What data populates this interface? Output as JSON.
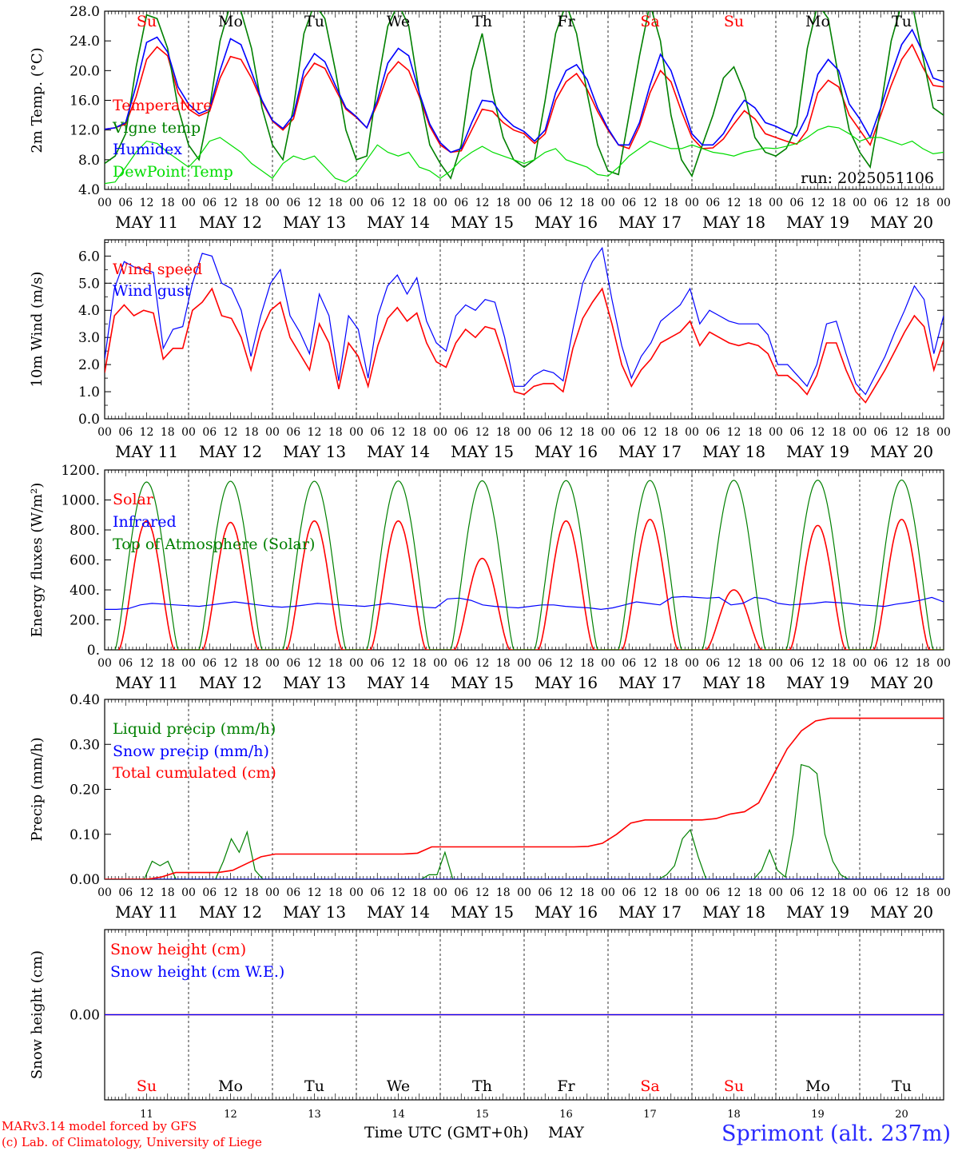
{
  "footer": {
    "model": "MARv3.14 model forced by GFS",
    "copyright": "(c) Lab. of Climatology, University of Liege",
    "time_axis_title": "Time UTC (GMT+0h)",
    "month": "MAY",
    "station": "Sprimont (alt. 237m)"
  },
  "days": {
    "dates": [
      "MAY 11",
      "MAY 12",
      "MAY 13",
      "MAY 14",
      "MAY 15",
      "MAY 16",
      "MAY 17",
      "MAY 18",
      "MAY 19",
      "MAY 20"
    ],
    "weekdays": [
      "Su",
      "Mo",
      "Tu",
      "We",
      "Th",
      "Fr",
      "Sa",
      "Su",
      "Mo",
      "Tu"
    ],
    "weekend": [
      true,
      false,
      false,
      false,
      false,
      false,
      true,
      true,
      false,
      false
    ],
    "numbers": [
      "11",
      "12",
      "13",
      "14",
      "15",
      "16",
      "17",
      "18",
      "19",
      "20"
    ],
    "hour_labels": [
      "00",
      "06",
      "12",
      "18"
    ],
    "final_hour_label": "00"
  },
  "colors": {
    "red": "#ff0000",
    "green": "#008000",
    "blue": "#0000ff",
    "lime": "#00dd00",
    "weekend": "#ff0000"
  },
  "chart_data": [
    {
      "type": "line",
      "ylabel": "2m Temp. (°C)",
      "ylim": [
        4,
        28
      ],
      "yticks": [
        "4.0",
        "8.0",
        "12.0",
        "16.0",
        "20.0",
        "24.0",
        "28.0"
      ],
      "x_unit": "hours since 2025-05-11 00 UTC (3-hourly)",
      "annotation": "run: 2025051106",
      "series": [
        {
          "name": "Temperature",
          "color": "#ff0000",
          "values": [
            12.1,
            12.3,
            12.8,
            16.5,
            21.5,
            23.2,
            22.0,
            17.0,
            14.8,
            13.9,
            14.5,
            19.0,
            21.9,
            21.5,
            19.0,
            15.8,
            13.2,
            12.0,
            13.5,
            19.0,
            21.0,
            20.3,
            17.5,
            14.8,
            13.7,
            12.3,
            15.5,
            19.5,
            21.2,
            20.0,
            16.5,
            12.5,
            10.0,
            9.0,
            9.2,
            12.0,
            14.8,
            14.5,
            13.0,
            12.0,
            11.5,
            10.2,
            11.5,
            16.0,
            18.5,
            19.6,
            17.5,
            14.5,
            12.0,
            10.0,
            9.5,
            12.5,
            17.0,
            20.0,
            18.5,
            14.5,
            11.0,
            9.5,
            9.6,
            10.8,
            12.8,
            14.6,
            13.5,
            11.5,
            11.0,
            10.5,
            10.1,
            12.0,
            17.0,
            18.7,
            17.8,
            14.0,
            12.0,
            10.0,
            14.0,
            18.0,
            21.5,
            23.5,
            20.5,
            18.0,
            17.8
          ]
        },
        {
          "name": "Vigne temp",
          "color": "#008000",
          "values": [
            7.5,
            8.5,
            11.5,
            20.5,
            27.5,
            27.0,
            23.0,
            15.0,
            10.0,
            8.0,
            15.0,
            24.0,
            29.0,
            28.0,
            23.0,
            15.0,
            10.0,
            8.0,
            15.0,
            25.0,
            29.0,
            27.0,
            20.0,
            12.0,
            8.0,
            8.5,
            18.0,
            26.0,
            29.0,
            26.0,
            17.0,
            10.0,
            7.5,
            5.5,
            10.0,
            20.0,
            25.0,
            17.0,
            11.0,
            8.0,
            7.0,
            8.0,
            16.0,
            25.0,
            29.0,
            25.0,
            17.0,
            10.0,
            6.5,
            6.0,
            14.0,
            22.0,
            29.0,
            24.0,
            14.0,
            8.0,
            5.8,
            10.0,
            14.0,
            19.0,
            20.5,
            17.0,
            11.0,
            9.0,
            8.5,
            9.5,
            12.5,
            23.0,
            29.0,
            27.0,
            19.0,
            12.0,
            9.0,
            7.0,
            15.0,
            24.0,
            29.0,
            29.0,
            22.0,
            15.0,
            14.0
          ]
        },
        {
          "name": "Humidex",
          "color": "#0000ff",
          "values": [
            12.1,
            12.3,
            13.0,
            18.0,
            23.8,
            24.5,
            22.5,
            17.8,
            15.5,
            14.2,
            14.8,
            20.0,
            24.3,
            23.5,
            19.8,
            16.0,
            13.3,
            12.2,
            14.0,
            20.0,
            22.3,
            21.2,
            18.0,
            15.0,
            13.8,
            12.3,
            16.0,
            21.0,
            23.0,
            22.0,
            17.0,
            12.8,
            10.3,
            9.0,
            9.5,
            13.0,
            16.0,
            15.8,
            13.8,
            12.5,
            11.8,
            10.5,
            12.0,
            17.0,
            20.0,
            20.8,
            18.8,
            15.0,
            12.2,
            10.0,
            10.0,
            13.0,
            18.0,
            22.2,
            20.0,
            15.8,
            11.5,
            10.0,
            10.0,
            11.5,
            14.0,
            16.0,
            15.0,
            13.0,
            12.5,
            11.8,
            11.2,
            14.0,
            19.5,
            21.5,
            20.0,
            15.5,
            13.5,
            11.0,
            15.0,
            19.5,
            23.5,
            25.5,
            22.5,
            19.0,
            18.5
          ]
        },
        {
          "name": "DewPoint Temp",
          "color": "#00dd00",
          "values": [
            4.8,
            5.0,
            7.0,
            9.0,
            10.5,
            10.2,
            9.0,
            8.0,
            7.0,
            8.5,
            10.5,
            11.0,
            10.0,
            9.0,
            7.5,
            6.5,
            5.5,
            7.5,
            8.5,
            8.0,
            8.5,
            7.0,
            5.5,
            5.0,
            6.0,
            8.0,
            10.0,
            9.0,
            8.5,
            9.0,
            7.0,
            6.5,
            5.5,
            6.5,
            8.0,
            9.0,
            9.8,
            9.0,
            8.5,
            8.0,
            7.5,
            8.0,
            9.0,
            9.5,
            8.0,
            7.5,
            7.0,
            6.0,
            5.8,
            7.0,
            8.5,
            9.5,
            10.5,
            10.0,
            9.5,
            9.5,
            10.0,
            9.5,
            9.0,
            8.8,
            8.5,
            9.0,
            9.3,
            9.6,
            9.5,
            9.8,
            10.2,
            11.0,
            12.0,
            12.5,
            12.3,
            11.5,
            10.5,
            11.0,
            11.0,
            10.5,
            10.0,
            10.5,
            9.5,
            8.8,
            9.0
          ]
        }
      ]
    },
    {
      "type": "line",
      "ylabel": "10m Wind (m/s)",
      "ylim": [
        0,
        6.6
      ],
      "yticks": [
        "0.0",
        "1.0",
        "2.0",
        "3.0",
        "4.0",
        "5.0",
        "6.0"
      ],
      "reference_line": 5.0,
      "series": [
        {
          "name": "Wind speed",
          "color": "#ff0000",
          "values": [
            1.7,
            3.8,
            4.2,
            3.8,
            4.0,
            3.9,
            2.2,
            2.6,
            2.6,
            4.0,
            4.3,
            4.8,
            3.8,
            3.7,
            3.0,
            1.8,
            3.2,
            4.0,
            4.3,
            3.0,
            2.4,
            1.8,
            3.5,
            2.8,
            1.1,
            2.8,
            2.3,
            1.2,
            2.7,
            3.7,
            4.1,
            3.6,
            3.9,
            2.8,
            2.1,
            1.9,
            2.8,
            3.3,
            3.0,
            3.4,
            3.3,
            2.2,
            1.0,
            0.9,
            1.2,
            1.3,
            1.3,
            1.0,
            2.6,
            3.7,
            4.3,
            4.8,
            3.5,
            2.0,
            1.2,
            1.8,
            2.2,
            2.8,
            3.0,
            3.2,
            3.6,
            2.7,
            3.2,
            3.0,
            2.8,
            2.7,
            2.8,
            2.7,
            2.4,
            1.6,
            1.6,
            1.3,
            0.9,
            1.6,
            2.8,
            2.8,
            1.8,
            1.0,
            0.6,
            1.2,
            1.8,
            2.5,
            3.2,
            3.8,
            3.4,
            1.8,
            2.9
          ]
        },
        {
          "name": "Wind gust",
          "color": "#0000ff",
          "values": [
            2.2,
            4.8,
            5.8,
            5.6,
            5.5,
            5.4,
            2.6,
            3.3,
            3.4,
            5.0,
            6.1,
            6.0,
            5.0,
            4.8,
            4.0,
            2.3,
            3.8,
            5.0,
            5.5,
            3.8,
            3.2,
            2.4,
            4.6,
            3.8,
            1.4,
            3.8,
            3.3,
            1.5,
            3.8,
            4.9,
            5.3,
            4.6,
            5.2,
            3.6,
            2.8,
            2.5,
            3.8,
            4.2,
            4.0,
            4.4,
            4.3,
            3.0,
            1.2,
            1.2,
            1.6,
            1.8,
            1.7,
            1.4,
            3.3,
            5.0,
            5.8,
            6.3,
            4.4,
            2.7,
            1.5,
            2.3,
            2.8,
            3.6,
            3.9,
            4.2,
            4.8,
            3.5,
            4.0,
            3.8,
            3.6,
            3.5,
            3.5,
            3.5,
            3.1,
            2.0,
            2.0,
            1.6,
            1.2,
            2.0,
            3.5,
            3.6,
            2.4,
            1.3,
            0.9,
            1.6,
            2.3,
            3.2,
            4.0,
            4.9,
            4.4,
            2.4,
            3.8
          ]
        }
      ]
    },
    {
      "type": "line",
      "ylabel": "Energy fluxes (W/m²)",
      "ylim": [
        0,
        1200
      ],
      "yticks": [
        "0.",
        "200.",
        "400.",
        "600.",
        "800.",
        "1000.",
        "1200."
      ],
      "series": [
        {
          "name": "Solar",
          "color": "#ff0000",
          "values": [
            0,
            0,
            860,
            20,
            0,
            0,
            0,
            0,
            0,
            850,
            50,
            0,
            0,
            0,
            0,
            0,
            860,
            0,
            0,
            0,
            0,
            0,
            0,
            860,
            0,
            0,
            0,
            0,
            0,
            0,
            120,
            610,
            0,
            0,
            0,
            0,
            0,
            0,
            0,
            860,
            0,
            0,
            0,
            0,
            0,
            0,
            0,
            870,
            0,
            0,
            0,
            0,
            0,
            0,
            0,
            400,
            0,
            0,
            0,
            0,
            0,
            0,
            0,
            830,
            0,
            0,
            0,
            0,
            0,
            0,
            0,
            870,
            0,
            0,
            0,
            0
          ]
        },
        {
          "name": "Infrared",
          "color": "#0000ff",
          "values": [
            270,
            270,
            275,
            300,
            310,
            305,
            300,
            295,
            290,
            300,
            310,
            320,
            310,
            300,
            290,
            285,
            290,
            300,
            310,
            305,
            300,
            295,
            290,
            300,
            310,
            300,
            290,
            285,
            280,
            340,
            345,
            330,
            300,
            290,
            285,
            280,
            290,
            300,
            300,
            290,
            285,
            280,
            270,
            280,
            300,
            320,
            310,
            300,
            350,
            355,
            350,
            345,
            350,
            300,
            310,
            350,
            340,
            310,
            300,
            305,
            310,
            320,
            315,
            310,
            300,
            295,
            290,
            305,
            315,
            330,
            350,
            320
          ]
        },
        {
          "name": "Top of Atmosphere (Solar)",
          "color": "#008000",
          "values": [
            1120,
            1125,
            1125,
            1127,
            1128,
            1129,
            1130,
            1131,
            1132,
            1133
          ]
        }
      ]
    },
    {
      "type": "line",
      "ylabel": "Precip (mm/h)",
      "ylim": [
        0,
        0.4
      ],
      "yticks": [
        "0.00",
        "0.10",
        "0.20",
        "0.30",
        "0.40"
      ],
      "series": [
        {
          "name": "Liquid precip (mm/h)",
          "color": "#008000",
          "values": [
            0,
            0,
            0,
            0,
            0,
            0,
            0.04,
            0.03,
            0.04,
            0,
            0,
            0,
            0,
            0,
            0,
            0.04,
            0.09,
            0.06,
            0.105,
            0.02,
            0,
            0,
            0,
            0,
            0,
            0,
            0,
            0,
            0,
            0,
            0,
            0,
            0,
            0,
            0,
            0,
            0,
            0,
            0,
            0,
            0,
            0.01,
            0.01,
            0.06,
            0,
            0,
            0,
            0,
            0,
            0,
            0,
            0,
            0,
            0,
            0,
            0,
            0,
            0,
            0,
            0,
            0,
            0,
            0,
            0,
            0,
            0,
            0,
            0,
            0,
            0,
            0,
            0.01,
            0.03,
            0.09,
            0.11,
            0.05,
            0,
            0,
            0,
            0,
            0,
            0,
            0,
            0.02,
            0.065,
            0.02,
            0.005,
            0.1,
            0.255,
            0.25,
            0.235,
            0.1,
            0.04,
            0.01,
            0,
            0,
            0,
            0,
            0,
            0,
            0,
            0,
            0,
            0,
            0,
            0,
            0
          ]
        },
        {
          "name": "Snow precip (mm/h)",
          "color": "#0000ff",
          "values": [
            0,
            0
          ]
        },
        {
          "name": "Total cumulated (cm)",
          "color": "#ff0000",
          "values": [
            0,
            0,
            0,
            0,
            0.005,
            0.015,
            0.015,
            0.015,
            0.015,
            0.02,
            0.035,
            0.05,
            0.056,
            0.056,
            0.056,
            0.056,
            0.056,
            0.056,
            0.056,
            0.056,
            0.056,
            0.056,
            0.058,
            0.072,
            0.072,
            0.072,
            0.072,
            0.072,
            0.072,
            0.072,
            0.072,
            0.072,
            0.072,
            0.072,
            0.073,
            0.08,
            0.1,
            0.125,
            0.132,
            0.132,
            0.132,
            0.132,
            0.132,
            0.135,
            0.145,
            0.15,
            0.17,
            0.23,
            0.29,
            0.33,
            0.352,
            0.358,
            0.358,
            0.358,
            0.358,
            0.358,
            0.358,
            0.358,
            0.358,
            0.358
          ]
        }
      ]
    },
    {
      "type": "line",
      "ylabel": "Snow height (cm)",
      "yticks": [
        "0.00"
      ],
      "series": [
        {
          "name": "Snow height (cm)",
          "color": "#ff0000",
          "values": [
            0,
            0
          ]
        },
        {
          "name": "Snow height (cm W.E.)",
          "color": "#0000ff",
          "values": [
            0,
            0
          ]
        }
      ]
    }
  ]
}
